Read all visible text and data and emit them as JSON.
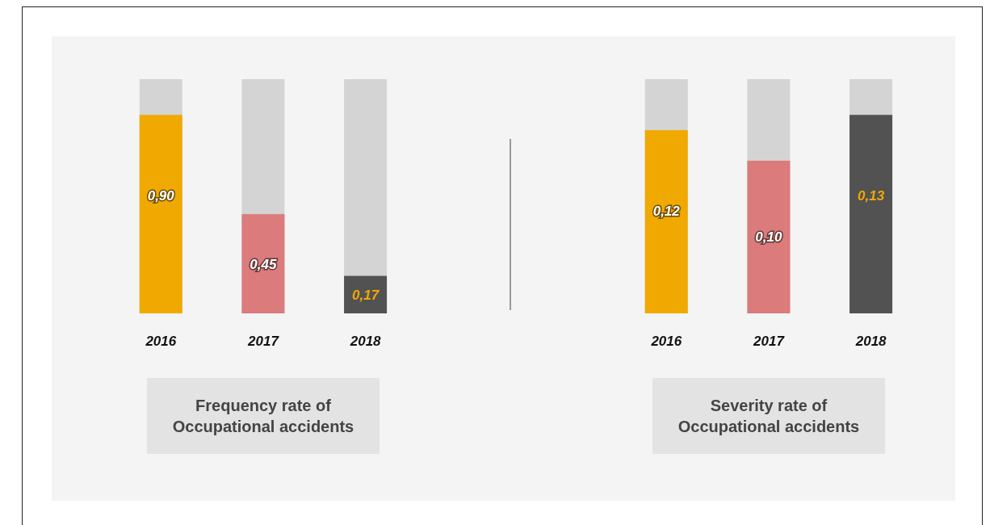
{
  "chart_data": [
    {
      "type": "bar",
      "title": "Frequency rate of Occupational accidents",
      "categories": [
        "2016",
        "2017",
        "2018"
      ],
      "values": [
        0.9,
        0.45,
        0.17
      ],
      "value_labels": [
        "0,90",
        "0,45",
        "0,17"
      ],
      "colors": [
        "#f0a900",
        "#db7b7b",
        "#525252"
      ]
    },
    {
      "type": "bar",
      "title": "Severity rate of Occupational accidents",
      "categories": [
        "2016",
        "2017",
        "2018"
      ],
      "values": [
        0.12,
        0.1,
        0.13
      ],
      "value_labels": [
        "0,12",
        "0,10",
        "0,13"
      ],
      "colors": [
        "#f0a900",
        "#db7b7b",
        "#525252"
      ]
    }
  ]
}
